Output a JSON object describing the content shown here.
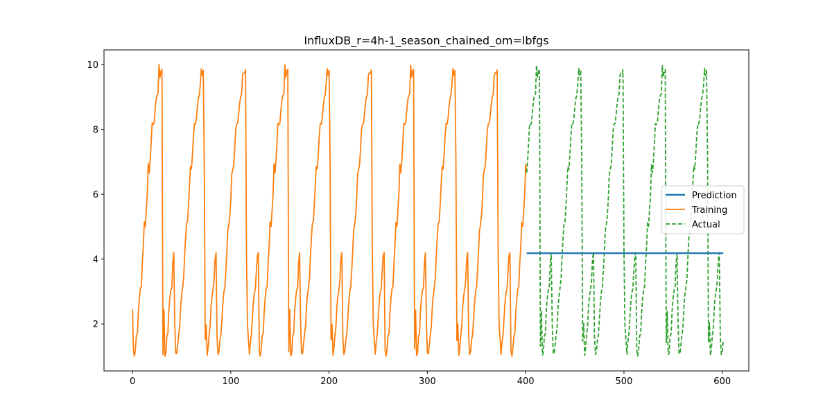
{
  "chart_data": {
    "type": "line",
    "title": "InfluxDB_r=4h-1_season_chained_om=lbfgs",
    "xlabel": "",
    "ylabel": "",
    "xlim": [
      -29,
      627
    ],
    "ylim": [
      0.55,
      10.45
    ],
    "x_ticks": [
      0,
      100,
      200,
      300,
      400,
      500,
      600
    ],
    "y_ticks": [
      2,
      4,
      6,
      8,
      10
    ],
    "legend_position": "center-right",
    "grid": false,
    "season_length": 42.67,
    "season_profile": {
      "offset": [
        0,
        1,
        2,
        3,
        4,
        5,
        6,
        7,
        8,
        9,
        10,
        11,
        12,
        13,
        14,
        15,
        16,
        17,
        18,
        19,
        20,
        21,
        22,
        23,
        24,
        25,
        26,
        27,
        28,
        29,
        30,
        31,
        32,
        33,
        34,
        35,
        36,
        37,
        38,
        39,
        40,
        41,
        42
      ],
      "value": [
        2.45,
        1.15,
        1.0,
        1.25,
        1.65,
        1.7,
        2.4,
        2.8,
        3.1,
        3.15,
        3.9,
        4.4,
        5.15,
        5.0,
        5.5,
        6.0,
        6.95,
        6.65,
        7.05,
        7.6,
        8.2,
        8.15,
        8.2,
        8.6,
        8.9,
        9.05,
        9.1,
        10.0,
        9.6,
        9.8,
        9.85,
        1.05,
        2.45,
        1.0,
        1.1,
        1.65,
        1.7,
        2.45,
        2.8,
        3.05,
        3.1,
        3.9,
        4.2
      ]
    },
    "series": [
      {
        "name": "Prediction",
        "color": "#1f77b4",
        "style": "solid",
        "x": [
          401,
          601
        ],
        "y": [
          4.18,
          4.18
        ]
      },
      {
        "name": "Training",
        "color": "#ff7f0e",
        "style": "solid",
        "x_range": [
          0,
          401
        ]
      },
      {
        "name": "Actual",
        "color": "#2ca02c",
        "style": "dashed",
        "x_range": [
          401,
          601
        ]
      }
    ]
  }
}
